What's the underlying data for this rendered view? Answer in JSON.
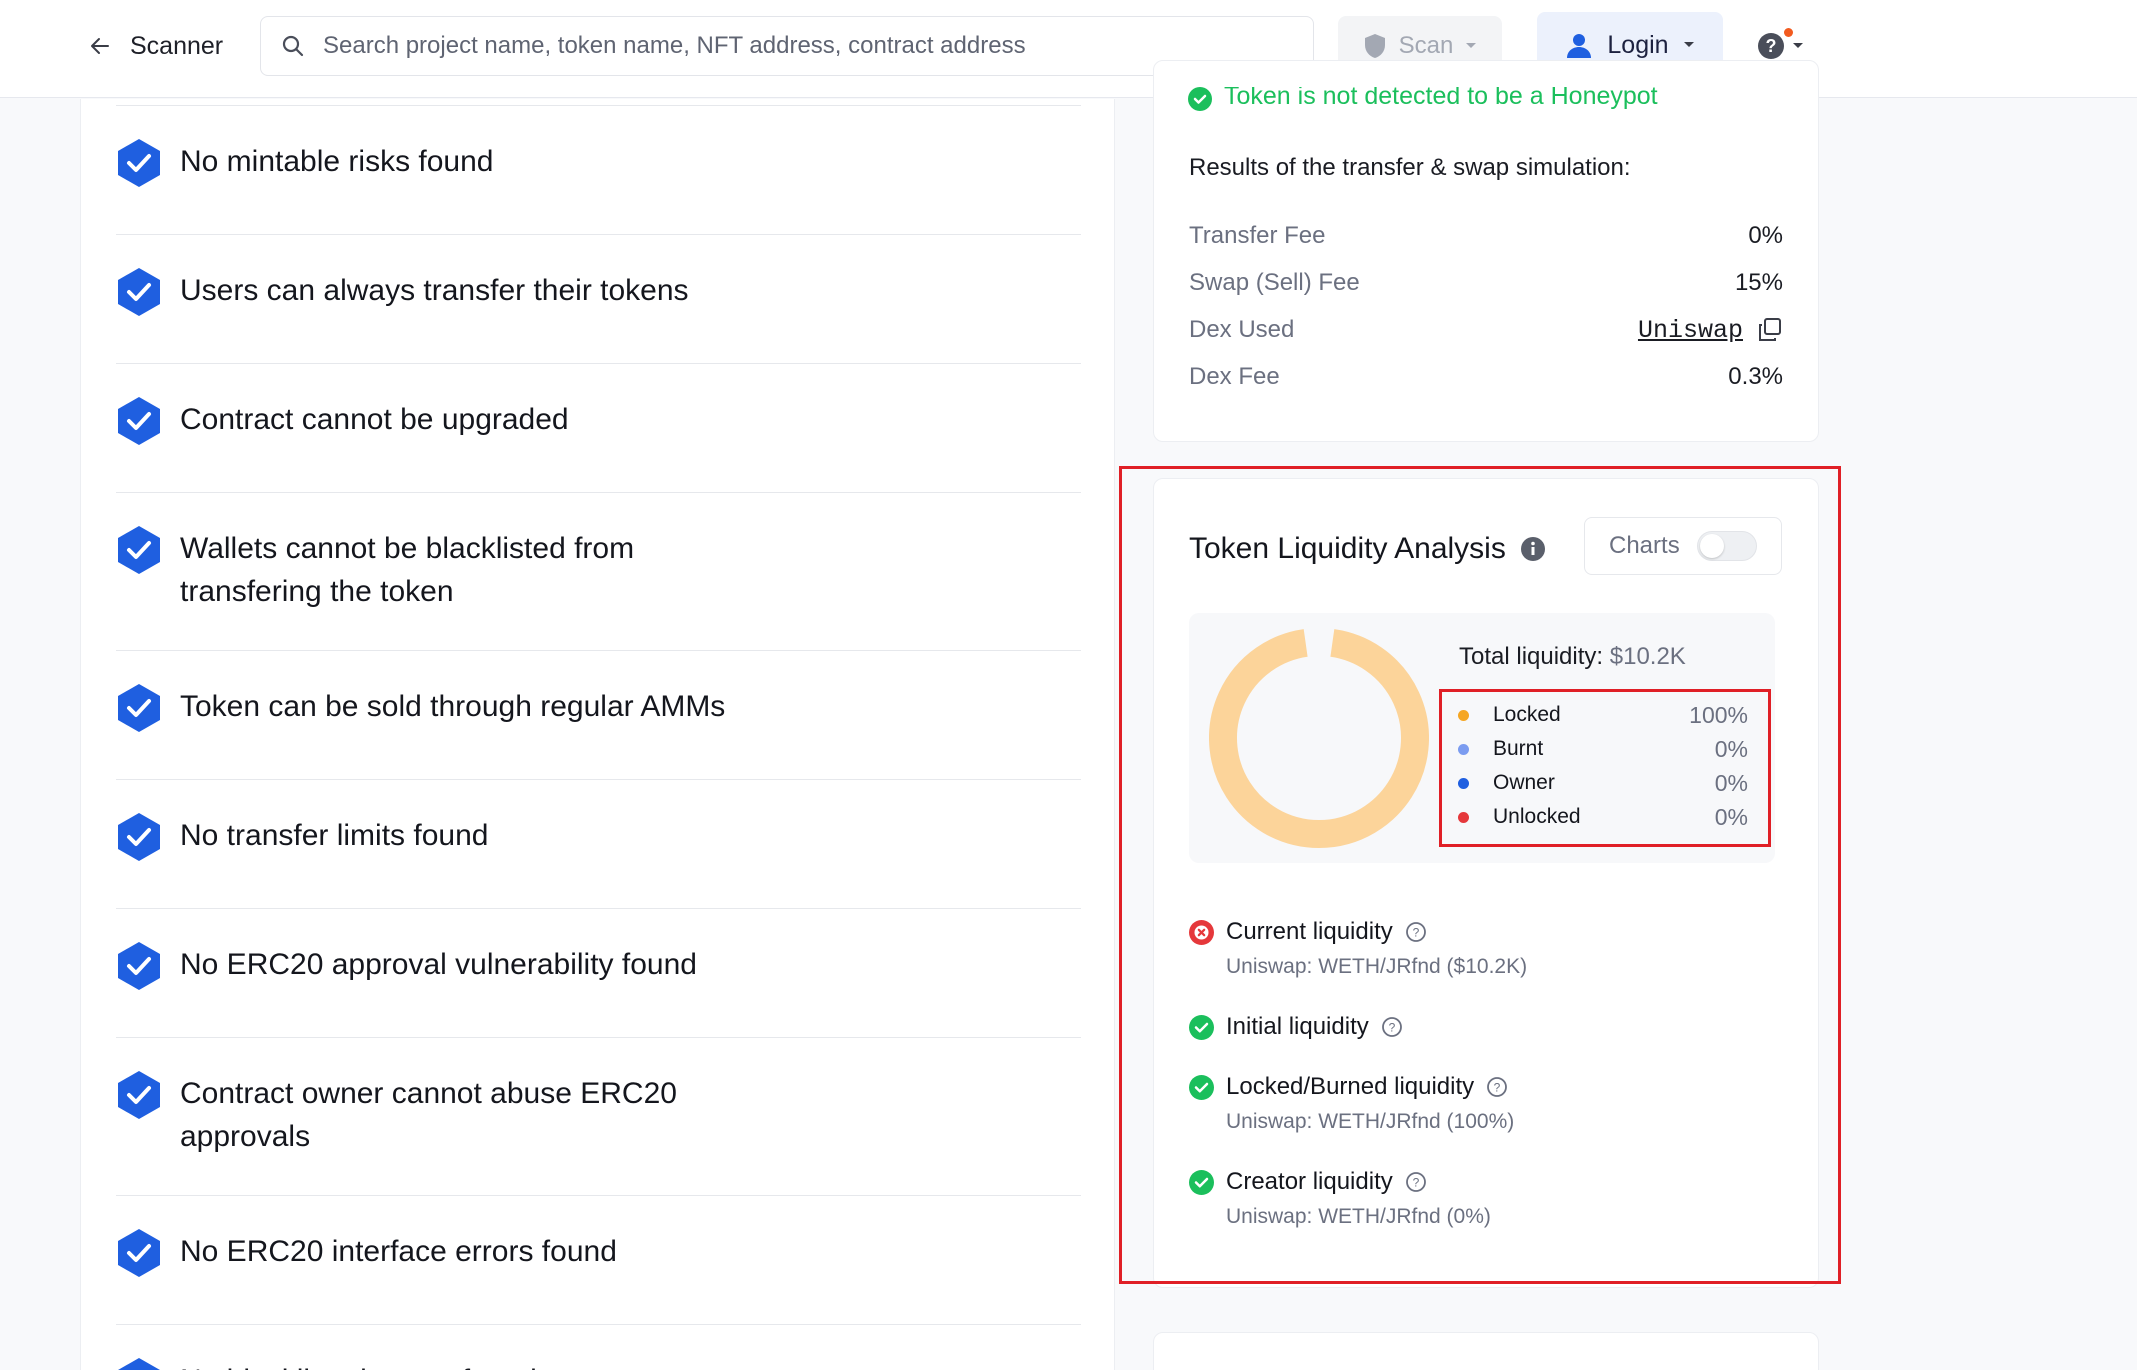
{
  "header": {
    "back_label": "Scanner",
    "search_placeholder": "Search project name, token name, NFT address, contract address",
    "scan_label": "Scan",
    "login_label": "Login"
  },
  "checks": [
    {
      "text": "No mintable risks found"
    },
    {
      "text": "Users can always transfer their tokens"
    },
    {
      "text": "Contract cannot be upgraded"
    },
    {
      "text": "Wallets cannot be blacklisted from\ntransfering the token"
    },
    {
      "text": "Token can be sold through regular AMMs"
    },
    {
      "text": "No transfer limits found"
    },
    {
      "text": "No ERC20 approval vulnerability found"
    },
    {
      "text": "Contract owner cannot abuse ERC20\napprovals"
    },
    {
      "text": "No ERC20 interface errors found"
    },
    {
      "text": "No blacklisted errors found"
    }
  ],
  "simulation": {
    "banner": "Token is not detected to be a Honeypot",
    "title": "Results of the transfer & swap simulation:",
    "rows": {
      "transfer_fee": {
        "label": "Transfer Fee",
        "value": "0%"
      },
      "swap_fee": {
        "label": "Swap (Sell) Fee",
        "value": "15%"
      },
      "dex_used": {
        "label": "Dex Used",
        "value": "Uniswap"
      },
      "dex_fee": {
        "label": "Dex Fee",
        "value": "0.3%"
      }
    }
  },
  "liquidity": {
    "title": "Token Liquidity Analysis",
    "charts_label": "Charts",
    "charts_enabled": false,
    "total_label": "Total liquidity:",
    "total_value": "$10.2K",
    "breakdown": [
      {
        "name": "Locked",
        "pct": "100%",
        "color": "#f5a623"
      },
      {
        "name": "Burnt",
        "pct": "0%",
        "color": "#7b9cf0"
      },
      {
        "name": "Owner",
        "pct": "0%",
        "color": "#1f5fe0"
      },
      {
        "name": "Unlocked",
        "pct": "0%",
        "color": "#e5383b"
      }
    ],
    "donut_locked_fraction": 1.0,
    "donut_color": "#fcd49a",
    "metrics": {
      "current": {
        "label": "Current liquidity",
        "sub": "Uniswap: WETH/JRfnd ($10.2K)",
        "status": "fail"
      },
      "initial": {
        "label": "Initial liquidity",
        "status": "pass"
      },
      "locked": {
        "label": "Locked/Burned liquidity",
        "sub": "Uniswap: WETH/JRfnd (100%)",
        "status": "pass"
      },
      "creator": {
        "label": "Creator liquidity",
        "sub": "Uniswap: WETH/JRfnd (0%)",
        "status": "pass"
      }
    }
  },
  "colors": {
    "accent_blue": "#1f5fe0",
    "pass_green": "#1bbf5c",
    "fail_red": "#e5383b",
    "highlight_red": "#e01f26"
  }
}
